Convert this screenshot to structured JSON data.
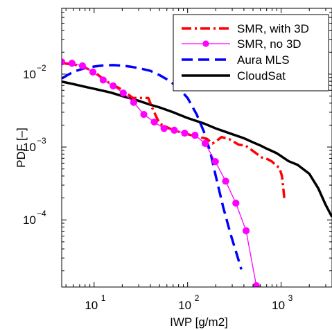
{
  "chart_data": {
    "type": "line",
    "title": "",
    "xlabel": "IWP [g/m2]",
    "ylabel": "PDF [–]",
    "xscale": "log",
    "yscale": "log",
    "xlim": [
      4.5,
      3500
    ],
    "ylim": [
      1.2e-05,
      0.08
    ],
    "x_ticks": [
      {
        "value": 10,
        "base": "10",
        "exp": "1"
      },
      {
        "value": 100,
        "base": "10",
        "exp": "2"
      },
      {
        "value": 1000,
        "base": "10",
        "exp": "3"
      }
    ],
    "y_ticks": [
      {
        "value": 0.0001,
        "base": "10",
        "exp": "−4"
      },
      {
        "value": 0.001,
        "base": "10",
        "exp": "−3"
      },
      {
        "value": 0.01,
        "base": "10",
        "exp": "−2"
      }
    ],
    "grid": false,
    "legend_position": "top-right",
    "series": [
      {
        "name": "SMR, with 3D",
        "color": "#ff0000",
        "style": "dashdot",
        "marker": "none",
        "x": [
          4.5,
          7,
          10,
          13,
          20,
          26,
          33,
          38,
          42,
          50,
          70,
          100,
          130,
          160,
          185,
          205,
          230,
          280,
          350,
          420,
          520,
          620,
          720,
          800,
          880,
          960,
          1020,
          1050,
          1080
        ],
        "y": [
          0.0142,
          0.0132,
          0.0108,
          0.0082,
          0.0061,
          0.0047,
          0.0047,
          0.0047,
          0.0034,
          0.0021,
          0.0017,
          0.0015,
          0.00138,
          0.0013,
          0.00112,
          0.00122,
          0.00137,
          0.00128,
          0.00108,
          0.00104,
          0.00085,
          0.00072,
          0.00068,
          0.00063,
          0.00056,
          0.00052,
          0.0004,
          0.00029,
          0.0002
        ]
      },
      {
        "name": "SMR, no 3D",
        "color": "#ff00ff",
        "style": "solid",
        "marker": "circle",
        "x": [
          4.5,
          5.8,
          7.5,
          9.7,
          12.5,
          16,
          20.5,
          26.5,
          34,
          44,
          56,
          72,
          93,
          120,
          154,
          198,
          255,
          328,
          422,
          543
        ],
        "y": [
          0.0147,
          0.0141,
          0.013,
          0.0107,
          0.0083,
          0.0069,
          0.0055,
          0.0041,
          0.0028,
          0.0022,
          0.0018,
          0.0017,
          0.00155,
          0.00145,
          0.00112,
          0.00063,
          0.00034,
          0.00017,
          7.1e-05,
          1.25e-05
        ]
      },
      {
        "name": "Aura MLS",
        "color": "#0000ff",
        "style": "dashed",
        "marker": "none",
        "x": [
          4.5,
          6,
          8,
          10,
          12,
          16,
          20,
          25,
          30,
          40,
          50,
          63,
          80,
          100,
          125,
          150,
          175,
          200,
          240,
          290,
          340,
          375
        ],
        "y": [
          0.0087,
          0.0108,
          0.0121,
          0.0127,
          0.0131,
          0.0133,
          0.0131,
          0.0126,
          0.0121,
          0.0111,
          0.0097,
          0.0082,
          0.0065,
          0.0047,
          0.0028,
          0.0016,
          0.00085,
          0.0004,
          0.00015,
          6.2e-05,
          3.2e-05,
          2.1e-05
        ]
      },
      {
        "name": "CloudSat",
        "color": "#000000",
        "style": "solid",
        "marker": "none",
        "x": [
          4.5,
          6,
          8,
          10,
          15,
          20,
          30,
          40,
          50,
          70,
          100,
          150,
          200,
          300,
          400,
          500,
          600,
          700,
          800,
          900,
          1000,
          1200,
          1500,
          2000,
          2500,
          3000,
          3500
        ],
        "y": [
          0.0079,
          0.0073,
          0.0067,
          0.0063,
          0.0056,
          0.005,
          0.0043,
          0.0038,
          0.0035,
          0.003,
          0.0025,
          0.0021,
          0.0018,
          0.0015,
          0.00132,
          0.00116,
          0.00105,
          0.00095,
          0.00088,
          0.00082,
          0.00075,
          0.00064,
          0.00057,
          0.00043,
          0.00027,
          0.00016,
          0.00011
        ]
      }
    ]
  }
}
